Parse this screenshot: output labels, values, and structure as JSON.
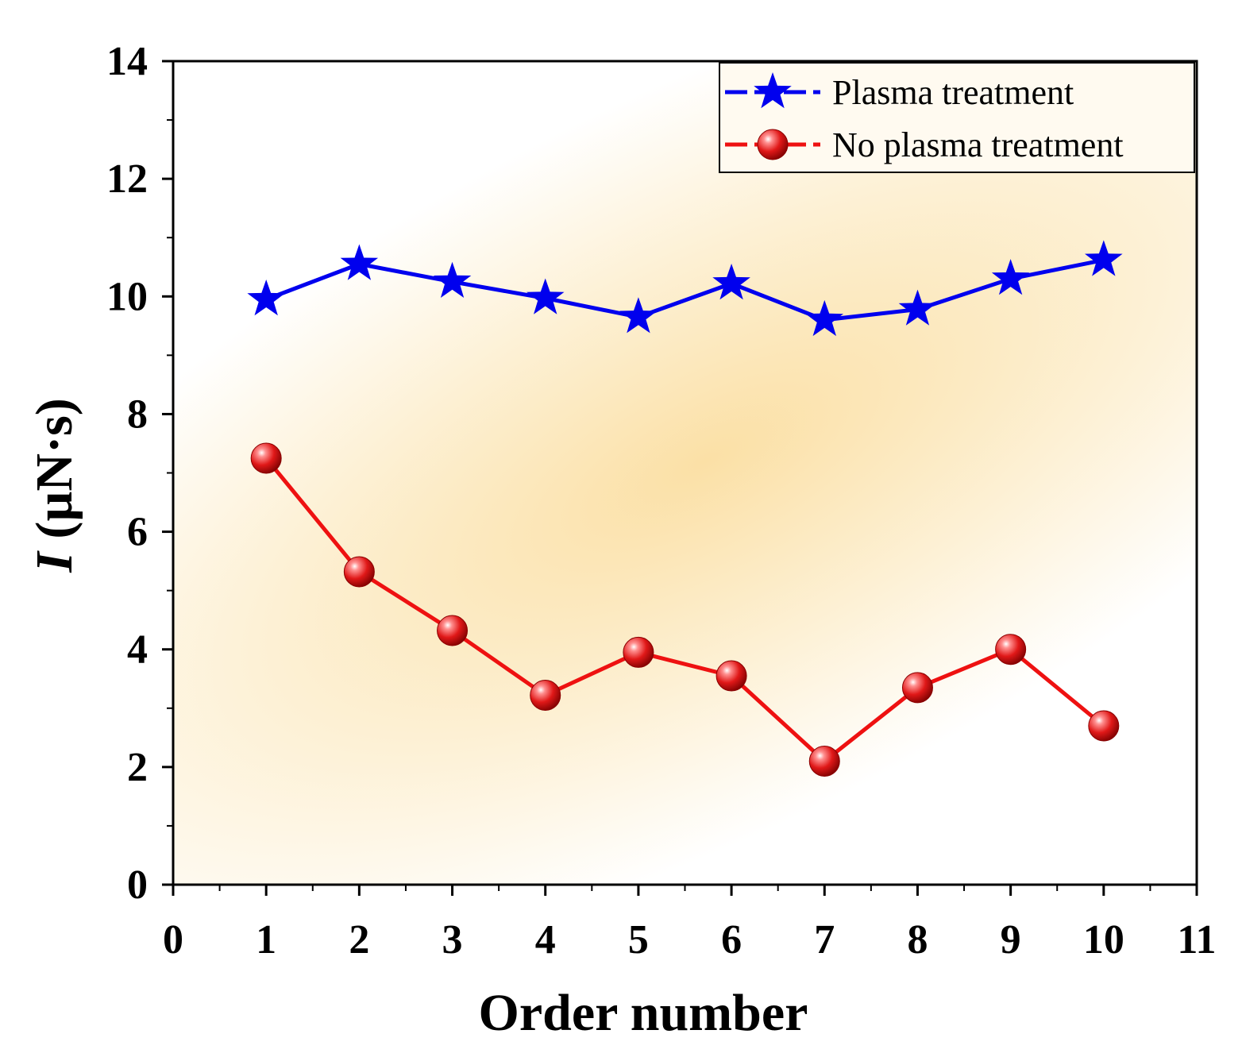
{
  "chart_data": {
    "type": "line",
    "title": "",
    "xlabel": "Order number",
    "ylabel_symbol": "I",
    "ylabel_unit": " (µN·s)",
    "xlim": [
      0,
      11
    ],
    "ylim": [
      0,
      14
    ],
    "x_ticks": [
      0,
      1,
      2,
      3,
      4,
      5,
      6,
      7,
      8,
      9,
      10,
      11
    ],
    "y_ticks": [
      0,
      2,
      4,
      6,
      8,
      10,
      12,
      14
    ],
    "legend_position": "top-right",
    "x": [
      1,
      2,
      3,
      4,
      5,
      6,
      7,
      8,
      9,
      10
    ],
    "series": [
      {
        "name": "Plasma treatment",
        "color": "#0000ee",
        "marker": "star",
        "values": [
          9.95,
          10.55,
          10.25,
          9.97,
          9.65,
          10.22,
          9.6,
          9.78,
          10.3,
          10.62
        ]
      },
      {
        "name": "No plasma treatment",
        "color": "#ee1111",
        "marker": "sphere",
        "values": [
          7.25,
          5.32,
          4.32,
          3.22,
          3.95,
          3.55,
          2.1,
          3.35,
          4.0,
          2.7
        ]
      }
    ]
  }
}
